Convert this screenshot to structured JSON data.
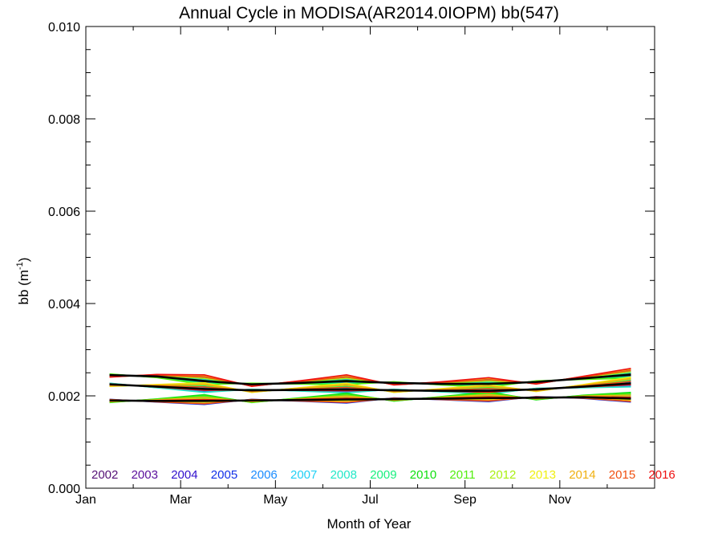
{
  "chart_data": {
    "type": "line",
    "title": "Annual Cycle in MODISA(AR2014.0IOPM) bb(547)",
    "xlabel": "Month of Year",
    "ylabel": "bb (m",
    "ylabel_sup": "-1",
    "ylabel_close": ")",
    "xlim": [
      0,
      12
    ],
    "ylim": [
      0.0,
      0.01
    ],
    "x_ticks": [
      {
        "month": 0,
        "label": "Jan"
      },
      {
        "month": 2,
        "label": "Mar"
      },
      {
        "month": 4,
        "label": "May"
      },
      {
        "month": 6,
        "label": "Jul"
      },
      {
        "month": 8,
        "label": "Sep"
      },
      {
        "month": 10,
        "label": "Nov"
      }
    ],
    "y_ticks": [
      {
        "value": 0.0,
        "label": "0.000"
      },
      {
        "value": 0.002,
        "label": "0.002"
      },
      {
        "value": 0.004,
        "label": "0.004"
      },
      {
        "value": 0.006,
        "label": "0.006"
      },
      {
        "value": 0.008,
        "label": "0.008"
      },
      {
        "value": 0.01,
        "label": "0.010"
      }
    ],
    "x": [
      0.5,
      1.5,
      2.5,
      3.5,
      4.5,
      5.5,
      6.5,
      7.5,
      8.5,
      9.5,
      10.5,
      11.5
    ],
    "climatology": [
      {
        "name": "upper",
        "values": [
          0.00245,
          0.00242,
          0.00232,
          0.00225,
          0.00228,
          0.00232,
          0.00228,
          0.00226,
          0.00226,
          0.0023,
          0.00238,
          0.00246
        ]
      },
      {
        "name": "mean",
        "values": [
          0.00225,
          0.0022,
          0.00215,
          0.00212,
          0.00213,
          0.00214,
          0.00212,
          0.00211,
          0.00211,
          0.00214,
          0.0022,
          0.00227
        ]
      },
      {
        "name": "lower",
        "values": [
          0.0019,
          0.00189,
          0.00189,
          0.0019,
          0.00191,
          0.00192,
          0.00193,
          0.00194,
          0.00195,
          0.00196,
          0.00197,
          0.00194
        ]
      }
    ],
    "series": [
      {
        "name": "2002",
        "color": "#551177"
      },
      {
        "name": "2003",
        "color": "#5a0f9c"
      },
      {
        "name": "2004",
        "color": "#3010cc"
      },
      {
        "name": "2005",
        "color": "#1030e8"
      },
      {
        "name": "2006",
        "color": "#1a8cff"
      },
      {
        "name": "2007",
        "color": "#1fd0f5"
      },
      {
        "name": "2008",
        "color": "#22e8c8"
      },
      {
        "name": "2009",
        "color": "#18f07e"
      },
      {
        "name": "2010",
        "color": "#10e010"
      },
      {
        "name": "2011",
        "color": "#55ee10"
      },
      {
        "name": "2012",
        "color": "#aaf010"
      },
      {
        "name": "2013",
        "color": "#f0f010"
      },
      {
        "name": "2014",
        "color": "#f0b010"
      },
      {
        "name": "2015",
        "color": "#f05010"
      },
      {
        "name": "2016",
        "color": "#ee1111"
      }
    ]
  }
}
